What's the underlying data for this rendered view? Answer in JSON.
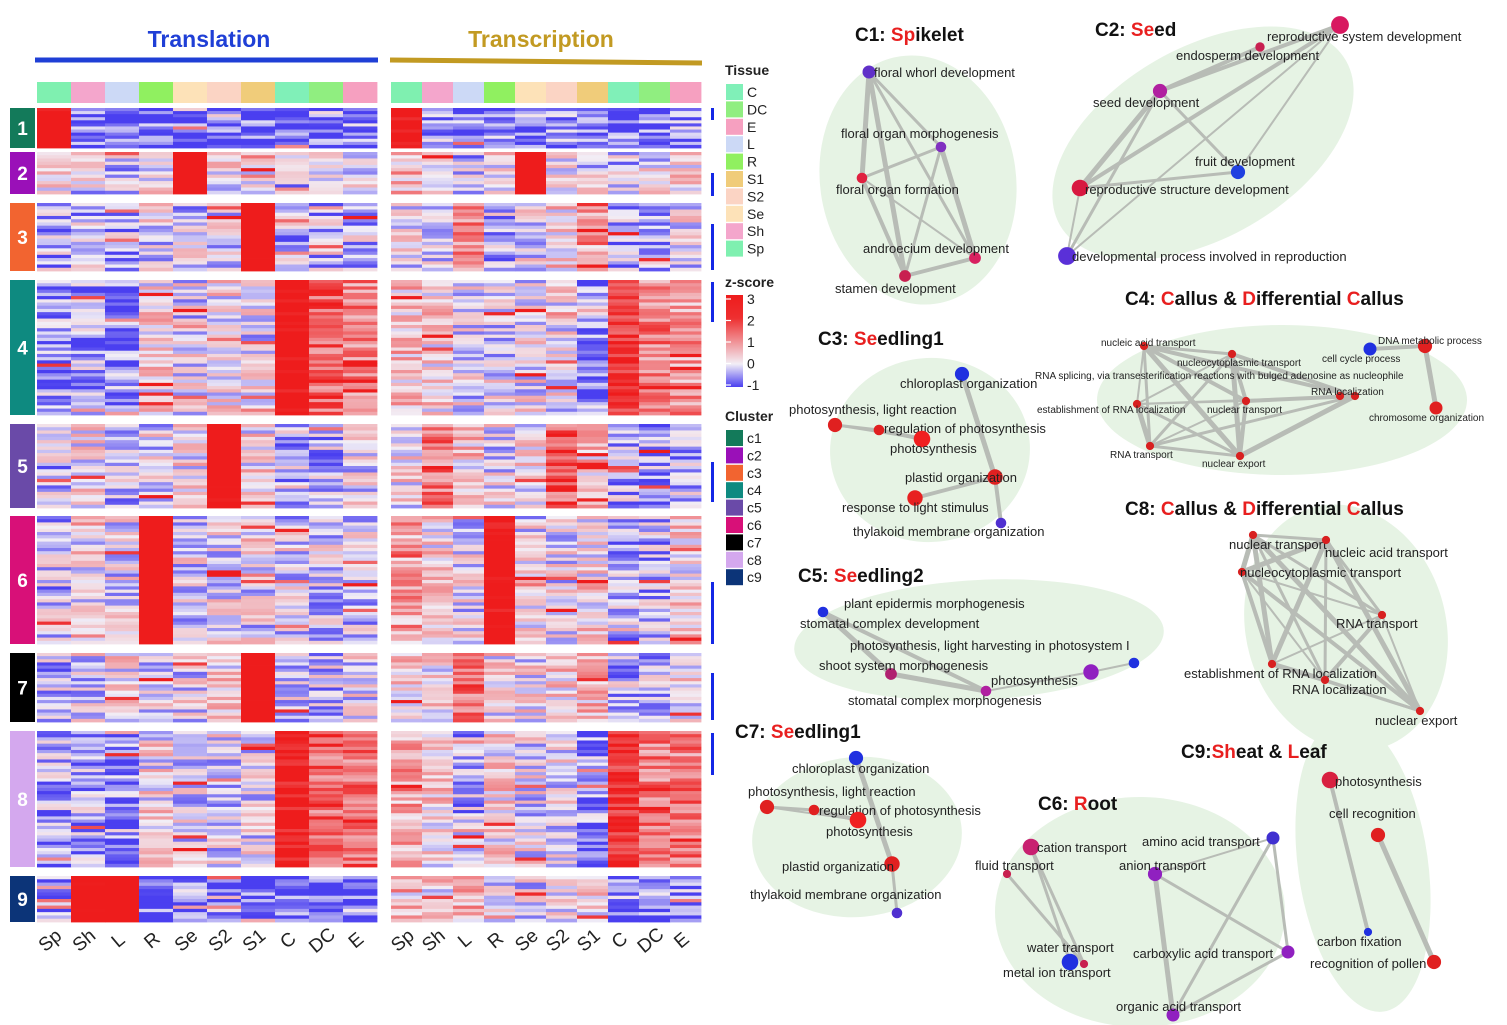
{
  "panel_titles": {
    "translation": "Translation",
    "transcription": "Transcription"
  },
  "colors": {
    "translation_title": "#1f3fd6",
    "transcription_title": "#c29a22",
    "heat_low": "#4a3ff0",
    "heat_mid": "#f2eef6",
    "heat_high": "#ee1c1c",
    "network_bg": "#e6f3e4",
    "edge": "#b8bcb6",
    "highlight_letter": "#e81f1f",
    "cluster_label_text": "#ffffff"
  },
  "columns": {
    "translation": [
      "Sp",
      "Sh",
      "L",
      "R",
      "Se",
      "S2",
      "S1",
      "C",
      "DC",
      "E"
    ],
    "transcription": [
      "Sp",
      "Sh",
      "L",
      "R",
      "Se",
      "S2",
      "S1",
      "C",
      "DC",
      "E"
    ]
  },
  "tissue_colors": {
    "C": "#80f0b8",
    "DC": "#90ee80",
    "E": "#f6a0c0",
    "L": "#ccd9f6",
    "R": "#90f060",
    "S1": "#f0cc7a",
    "S2": "#fbd4c4",
    "Se": "#fde2b8",
    "Sh": "#f4a6cc",
    "Sp": "#7ff0b0"
  },
  "clusters": [
    {
      "label": "1",
      "color": "#137a5a"
    },
    {
      "label": "2",
      "color": "#9a10b8"
    },
    {
      "label": "3",
      "color": "#f26430"
    },
    {
      "label": "4",
      "color": "#0e8a80"
    },
    {
      "label": "5",
      "color": "#6a4aa8"
    },
    {
      "label": "6",
      "color": "#d81078"
    },
    {
      "label": "7",
      "color": "#000000"
    },
    {
      "label": "8",
      "color": "#d4a8ee"
    },
    {
      "label": "9",
      "color": "#0c3478"
    }
  ],
  "heatmap_profiles": {
    "translation": [
      [
        2.6,
        -0.8,
        -0.9,
        -0.9,
        -0.8,
        -0.9,
        -0.9,
        -0.9,
        -0.9,
        -0.8
      ],
      [
        0.1,
        0.0,
        -0.1,
        0.2,
        2.8,
        0.1,
        0.0,
        -0.2,
        0.0,
        0.1
      ],
      [
        -0.3,
        -0.2,
        -0.3,
        0.0,
        -0.1,
        0.0,
        2.9,
        -0.2,
        -0.2,
        -0.2
      ],
      [
        -0.5,
        -0.4,
        -0.7,
        0.3,
        0.0,
        0.2,
        0.0,
        2.4,
        1.5,
        1.1
      ],
      [
        -0.2,
        0.2,
        -0.3,
        0.0,
        0.2,
        2.6,
        0.2,
        -0.3,
        -0.3,
        0.0
      ],
      [
        -0.2,
        0.2,
        0.0,
        2.8,
        0.0,
        0.0,
        0.0,
        -0.1,
        -0.1,
        -0.1
      ],
      [
        -0.2,
        0.0,
        0.2,
        0.0,
        0.0,
        0.3,
        2.8,
        -0.2,
        -0.2,
        0.0
      ],
      [
        -0.4,
        -0.4,
        -0.7,
        0.2,
        0.0,
        0.0,
        0.0,
        2.3,
        1.4,
        1.3
      ],
      [
        -0.6,
        2.6,
        2.8,
        -0.9,
        -0.9,
        -0.9,
        -0.9,
        -0.9,
        -0.9,
        -0.9
      ]
    ],
    "transcription": [
      [
        2.4,
        -0.6,
        -0.7,
        -0.7,
        -0.6,
        -0.7,
        -0.7,
        -0.7,
        -0.7,
        -0.6
      ],
      [
        0.6,
        0.2,
        -0.2,
        0.2,
        2.6,
        0.0,
        0.0,
        -0.2,
        0.0,
        0.3
      ],
      [
        0.0,
        -0.2,
        1.0,
        -0.2,
        0.0,
        0.4,
        0.8,
        -0.4,
        -0.3,
        0.0
      ],
      [
        0.5,
        0.3,
        0.0,
        0.0,
        0.1,
        0.1,
        -0.5,
        1.8,
        1.2,
        0.9
      ],
      [
        0.2,
        1.2,
        0.4,
        0.0,
        0.2,
        1.5,
        0.5,
        -0.3,
        -0.4,
        -0.2
      ],
      [
        0.8,
        0.3,
        0.0,
        2.5,
        0.0,
        0.0,
        0.3,
        -0.3,
        -0.3,
        0.3
      ],
      [
        0.4,
        0.3,
        1.4,
        0.2,
        0.1,
        0.4,
        0.6,
        -0.2,
        -0.2,
        0.2
      ],
      [
        0.8,
        0.3,
        -0.3,
        0.3,
        0.0,
        0.0,
        -0.6,
        1.9,
        1.2,
        1.2
      ],
      [
        0.4,
        0.3,
        0.6,
        0.0,
        0.0,
        0.0,
        0.3,
        -0.6,
        -0.7,
        -0.6
      ]
    ]
  },
  "legend": {
    "tissue_title": "Tissue",
    "tissue_items": [
      "C",
      "DC",
      "E",
      "L",
      "R",
      "S1",
      "S2",
      "Se",
      "Sh",
      "Sp"
    ],
    "zscore_title": "z-score",
    "zscore_ticks": [
      "3",
      "2",
      "1",
      "0",
      "-1"
    ],
    "cluster_title": "Cluster",
    "cluster_items": [
      "c1",
      "c2",
      "c3",
      "c4",
      "c5",
      "c6",
      "c7",
      "c8",
      "c9"
    ]
  },
  "networks": [
    {
      "id": "c1",
      "title_parts": [
        [
          "C1: ",
          false
        ],
        [
          "Sp",
          true
        ],
        [
          "ikelet",
          false
        ]
      ],
      "nodes": [
        {
          "label": "floral whorl development",
          "color": "#6030c8",
          "size": 0.5
        },
        {
          "label": "floral organ morphogenesis",
          "color": "#8030c0",
          "size": 0.3
        },
        {
          "label": "floral organ formation",
          "color": "#e02040",
          "size": 0.3
        },
        {
          "label": "androecium development",
          "color": "#d82060",
          "size": 0.4
        },
        {
          "label": "stamen development",
          "color": "#c82050",
          "size": 0.4
        }
      ],
      "edges": [
        [
          0,
          1
        ],
        [
          0,
          2
        ],
        [
          0,
          3
        ],
        [
          0,
          4
        ],
        [
          1,
          2
        ],
        [
          1,
          3
        ],
        [
          1,
          4
        ],
        [
          2,
          3
        ],
        [
          2,
          4
        ],
        [
          3,
          4
        ]
      ]
    },
    {
      "id": "c2",
      "title_parts": [
        [
          "C2: ",
          false
        ],
        [
          "Se",
          true
        ],
        [
          "ed",
          false
        ]
      ],
      "nodes": [
        {
          "label": "reproductive system development",
          "color": "#d81860",
          "size": 0.9
        },
        {
          "label": "endosperm development",
          "color": "#c82050",
          "size": 0.2
        },
        {
          "label": "seed development",
          "color": "#b020a0",
          "size": 0.6
        },
        {
          "label": "fruit development",
          "color": "#2040e0",
          "size": 0.6
        },
        {
          "label": "reproductive structure development",
          "color": "#d81840",
          "size": 0.8
        },
        {
          "label": "developmental process involved in reproduction",
          "color": "#5a30d8",
          "size": 0.9
        }
      ],
      "edges": [
        [
          0,
          2
        ],
        [
          0,
          3
        ],
        [
          0,
          4
        ],
        [
          0,
          5
        ],
        [
          2,
          3
        ],
        [
          2,
          4
        ],
        [
          2,
          5
        ],
        [
          4,
          5
        ],
        [
          3,
          4
        ],
        [
          1,
          2
        ]
      ]
    },
    {
      "id": "c3",
      "title_parts": [
        [
          "C3: ",
          false
        ],
        [
          "Se",
          true
        ],
        [
          "edling1",
          false
        ]
      ],
      "nodes": [
        {
          "label": "chloroplast organization",
          "color": "#2030e0",
          "size": 0.6
        },
        {
          "label": "photosynthesis, light reaction",
          "color": "#e02020",
          "size": 0.6
        },
        {
          "label": "regulation of photosynthesis",
          "color": "#e02020",
          "size": 0.3
        },
        {
          "label": "photosynthesis",
          "color": "#f02020",
          "size": 0.8
        },
        {
          "label": "plastid organization",
          "color": "#e02020",
          "size": 0.7
        },
        {
          "label": "response to light stimulus",
          "color": "#e82020",
          "size": 0.7
        },
        {
          "label": "thylakoid membrane organization",
          "color": "#5030d0",
          "size": 0.3
        }
      ],
      "edges": [
        [
          1,
          2
        ],
        [
          2,
          3
        ],
        [
          1,
          3
        ],
        [
          0,
          4
        ],
        [
          4,
          6
        ],
        [
          4,
          5
        ]
      ]
    },
    {
      "id": "c4",
      "title_parts": [
        [
          "C4: ",
          false
        ],
        [
          "C",
          true
        ],
        [
          "allus & ",
          false
        ],
        [
          "D",
          true
        ],
        [
          "ifferential ",
          false
        ],
        [
          "C",
          true
        ],
        [
          "allus",
          false
        ]
      ],
      "nodes": [
        {
          "label": "nucleic acid transport",
          "color": "#d82020",
          "size": 0.1
        },
        {
          "label": "nucleocytoplasmic transport",
          "color": "#d82020",
          "size": 0.1
        },
        {
          "label": "cell cycle process",
          "color": "#2030e0",
          "size": 0.5
        },
        {
          "label": "DNA metabolic process",
          "color": "#e02020",
          "size": 0.6
        },
        {
          "label": "RNA splicing, via transesterification reactions with bulged adenosine as nucleophile",
          "color": "#d82020",
          "size": 0.1
        },
        {
          "label": "RNA localization",
          "color": "#d82020",
          "size": 0.1
        },
        {
          "label": "establishment of RNA localization",
          "color": "#d82020",
          "size": 0.1
        },
        {
          "label": "nuclear transport",
          "color": "#d82020",
          "size": 0.1
        },
        {
          "label": "chromosome organization",
          "color": "#e02020",
          "size": 0.5
        },
        {
          "label": "RNA transport",
          "color": "#d82020",
          "size": 0.1
        },
        {
          "label": "nuclear export",
          "color": "#d82020",
          "size": 0.1
        }
      ],
      "edges": [
        [
          0,
          1
        ],
        [
          0,
          5
        ],
        [
          0,
          6
        ],
        [
          0,
          7
        ],
        [
          0,
          9
        ],
        [
          0,
          10
        ],
        [
          1,
          5
        ],
        [
          1,
          6
        ],
        [
          1,
          7
        ],
        [
          1,
          9
        ],
        [
          1,
          10
        ],
        [
          5,
          6
        ],
        [
          5,
          7
        ],
        [
          5,
          9
        ],
        [
          5,
          10
        ],
        [
          6,
          7
        ],
        [
          6,
          9
        ],
        [
          6,
          10
        ],
        [
          7,
          9
        ],
        [
          7,
          10
        ],
        [
          9,
          10
        ],
        [
          2,
          3
        ],
        [
          3,
          8
        ]
      ]
    },
    {
      "id": "c5",
      "title_parts": [
        [
          "C5: ",
          false
        ],
        [
          "Se",
          true
        ],
        [
          "edling2",
          false
        ]
      ],
      "nodes": [
        {
          "label": "plant epidermis morphogenesis",
          "color": "#b02060",
          "size": 0.1
        },
        {
          "label": "stomatal complex development",
          "color": "#2030e0",
          "size": 0.3
        },
        {
          "label": "photosynthesis, light harvesting in photosystem I",
          "color": "#2030e0",
          "size": 0.3
        },
        {
          "label": "shoot system morphogenesis",
          "color": "#b02070",
          "size": 0.4
        },
        {
          "label": "photosynthesis",
          "color": "#9020c0",
          "size": 0.7
        },
        {
          "label": "stomatal complex morphogenesis",
          "color": "#b020a0",
          "size": 0.3
        }
      ],
      "edges": [
        [
          0,
          1
        ],
        [
          1,
          3
        ],
        [
          1,
          5
        ],
        [
          0,
          3
        ],
        [
          0,
          5
        ],
        [
          3,
          5
        ],
        [
          4,
          2
        ],
        [
          4,
          5
        ]
      ]
    },
    {
      "id": "c7",
      "title_parts": [
        [
          "C7: ",
          false
        ],
        [
          "Se",
          true
        ],
        [
          "edling1",
          false
        ]
      ],
      "nodes": [
        {
          "label": "chloroplast organization",
          "color": "#2030e0",
          "size": 0.6
        },
        {
          "label": "photosynthesis, light reaction",
          "color": "#e02020",
          "size": 0.6
        },
        {
          "label": "regulation of photosynthesis",
          "color": "#e02020",
          "size": 0.3
        },
        {
          "label": "photosynthesis",
          "color": "#f02020",
          "size": 0.8
        },
        {
          "label": "plastid organization",
          "color": "#e02020",
          "size": 0.7
        },
        {
          "label": "thylakoid membrane organization",
          "color": "#5030d0",
          "size": 0.3
        }
      ],
      "edges": [
        [
          1,
          2
        ],
        [
          2,
          3
        ],
        [
          1,
          3
        ],
        [
          0,
          4
        ],
        [
          4,
          5
        ]
      ]
    },
    {
      "id": "c8",
      "title_parts": [
        [
          "C8: ",
          false
        ],
        [
          "C",
          true
        ],
        [
          "allus & ",
          false
        ],
        [
          "D",
          true
        ],
        [
          "ifferential ",
          false
        ],
        [
          "C",
          true
        ],
        [
          "allus",
          false
        ]
      ],
      "nodes": [
        {
          "label": "nuclear transport",
          "color": "#d82020",
          "size": 0.1
        },
        {
          "label": "nucleic acid transport",
          "color": "#d82020",
          "size": 0.1
        },
        {
          "label": "nucleocytoplasmic transport",
          "color": "#d82020",
          "size": 0.1
        },
        {
          "label": "RNA transport",
          "color": "#d82020",
          "size": 0.1
        },
        {
          "label": "establishment of RNA localization",
          "color": "#d82020",
          "size": 0.1
        },
        {
          "label": "RNA localization",
          "color": "#d82020",
          "size": 0.1
        },
        {
          "label": "nuclear export",
          "color": "#d82020",
          "size": 0.1
        }
      ],
      "edges": [
        [
          0,
          1
        ],
        [
          0,
          2
        ],
        [
          0,
          3
        ],
        [
          0,
          4
        ],
        [
          0,
          5
        ],
        [
          0,
          6
        ],
        [
          1,
          2
        ],
        [
          1,
          3
        ],
        [
          1,
          4
        ],
        [
          1,
          5
        ],
        [
          1,
          6
        ],
        [
          2,
          3
        ],
        [
          2,
          4
        ],
        [
          2,
          5
        ],
        [
          2,
          6
        ],
        [
          3,
          4
        ],
        [
          3,
          5
        ],
        [
          3,
          6
        ],
        [
          4,
          5
        ],
        [
          4,
          6
        ],
        [
          5,
          6
        ]
      ]
    },
    {
      "id": "c6",
      "title_parts": [
        [
          "C6: ",
          false
        ],
        [
          "R",
          true
        ],
        [
          "oot",
          false
        ]
      ],
      "nodes": [
        {
          "label": "cation transport",
          "color": "#c82070",
          "size": 0.8
        },
        {
          "label": "fluid transport",
          "color": "#c82050",
          "size": 0.1
        },
        {
          "label": "amino acid transport",
          "color": "#4030d0",
          "size": 0.5
        },
        {
          "label": "anion transport",
          "color": "#9020c0",
          "size": 0.6
        },
        {
          "label": "water transport",
          "color": "#c82050",
          "size": 0.1
        },
        {
          "label": "metal ion transport",
          "color": "#2030e0",
          "size": 0.8
        },
        {
          "label": "carboxylic acid transport",
          "color": "#9020c0",
          "size": 0.5
        },
        {
          "label": "organic acid transport",
          "color": "#9020c0",
          "size": 0.5
        }
      ],
      "edges": [
        [
          0,
          5
        ],
        [
          0,
          4
        ],
        [
          1,
          4
        ],
        [
          2,
          3
        ],
        [
          2,
          7
        ],
        [
          2,
          6
        ],
        [
          3,
          6
        ],
        [
          3,
          7
        ],
        [
          6,
          7
        ]
      ]
    },
    {
      "id": "c9",
      "title_parts": [
        [
          "C9:",
          false
        ],
        [
          "Sh",
          true
        ],
        [
          "eat & ",
          false
        ],
        [
          "L",
          true
        ],
        [
          "eaf",
          false
        ]
      ],
      "nodes": [
        {
          "label": "photosynthesis",
          "color": "#d82040",
          "size": 0.8
        },
        {
          "label": "cell recognition",
          "color": "#e02020",
          "size": 0.6
        },
        {
          "label": "carbon fixation",
          "color": "#2030e0",
          "size": 0.1
        },
        {
          "label": "recognition of pollen",
          "color": "#e02020",
          "size": 0.6
        }
      ],
      "edges": [
        [
          0,
          2
        ],
        [
          1,
          3
        ]
      ]
    }
  ]
}
